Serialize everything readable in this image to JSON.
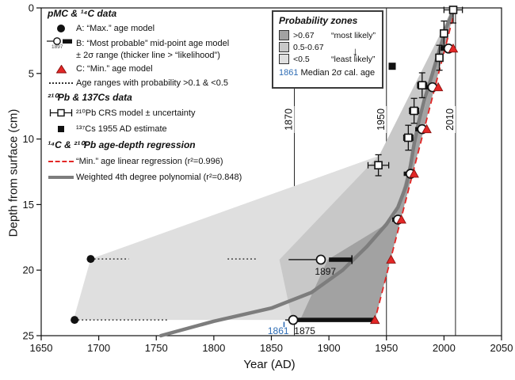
{
  "colors": {
    "zone_dark": "#a2a2a2",
    "zone_mid": "#c8c8c8",
    "zone_light": "#dfdfdf",
    "curve": "#7d7d7d",
    "red": "#e32726",
    "blue": "#2f6db5",
    "ink": "#111111"
  },
  "figure": {
    "x_axis": {
      "title": "Year (AD)",
      "min": 1650,
      "max": 2050,
      "ticks": [
        1650,
        1700,
        1750,
        1800,
        1850,
        1900,
        1950,
        2000,
        2050
      ]
    },
    "y_axis": {
      "title": "Depth from surface (cm)",
      "min": 0,
      "max": 25,
      "ticks": [
        0,
        5,
        10,
        15,
        20,
        25
      ]
    }
  },
  "legend_left": {
    "h1": "pMC & ¹⁴C data",
    "a_label": "A: “Max.” age model",
    "b_label": "B: “Most probable” mid-point age model",
    "b_label2": "± 2σ range (thicker line > “likelihood”)",
    "b_sub": "1897",
    "c_label": "C: “Min.” age model",
    "dotted_label": "Age ranges with probability >0.1 & <0.5",
    "h2": "²¹⁰Pb & 137Cs data",
    "pb_label": "²¹⁰Pb CRS model ± uncertainty",
    "cs_label": "¹³⁷Cs 1955 AD estimate",
    "h3": "¹⁴C & ²¹⁰Pb age-depth regression",
    "reg_label": "“Min.” age linear regression (r²=0.996)",
    "poly_label": "Weighted 4th degree polynomial (r²=0.848)"
  },
  "prob_box": {
    "title": "Probability zones",
    "rows": [
      {
        "value": ">0.67",
        "note": "“most likely”"
      },
      {
        "value": "0.5-0.67",
        "note": ""
      },
      {
        "value": "<0.5",
        "note": "“least likely”"
      }
    ],
    "arrow": "↓",
    "median_value": "1861",
    "median_label": "Median 2σ cal. age"
  },
  "chart_data": {
    "type": "scatter",
    "title": "Age-depth model",
    "xlabel": "Year (AD)",
    "ylabel": "Depth from surface (cm)",
    "x_range": [
      1650,
      2050
    ],
    "y_range_depth_cm": [
      0,
      25
    ],
    "ref_years": [
      {
        "year": 1870,
        "label": "1870",
        "partial": true
      },
      {
        "year": 1950,
        "label": "1950",
        "partial": false
      },
      {
        "year": 2010,
        "label": "2010",
        "partial": false
      }
    ],
    "zones": {
      "light": [
        [
          1678,
          23.8
        ],
        [
          1693,
          19.15
        ],
        [
          1949,
          11.1
        ],
        [
          2006,
          0.2
        ],
        [
          1940,
          23.8
        ]
      ],
      "mid": [
        [
          1868,
          23.8
        ],
        [
          1857,
          19.2
        ],
        [
          1944,
          11.2
        ],
        [
          2007,
          0.2
        ],
        [
          1940,
          23.8
        ]
      ],
      "dark": [
        [
          1875,
          23.8
        ],
        [
          1899,
          19.2
        ],
        [
          1957,
          16.1
        ],
        [
          1968,
          12.6
        ],
        [
          1978,
          9.2
        ],
        [
          1988,
          6.0
        ],
        [
          1998,
          3.0
        ],
        [
          2006,
          0.2
        ],
        [
          2009,
          0.2
        ],
        [
          1940,
          23.8
        ]
      ]
    },
    "polynomial_curve": [
      [
        1754,
        25
      ],
      [
        1800,
        23.9
      ],
      [
        1850,
        22.9
      ],
      [
        1885,
        21.7
      ],
      [
        1912,
        20.0
      ],
      [
        1933,
        18.2
      ],
      [
        1950,
        16.5
      ],
      [
        1960,
        15.2
      ],
      [
        1967,
        13.6
      ],
      [
        1971,
        12.0
      ],
      [
        1974,
        10.4
      ],
      [
        1978,
        8.7
      ],
      [
        1983,
        7.0
      ],
      [
        1989,
        5.3
      ],
      [
        1995,
        3.5
      ],
      [
        2002,
        1.5
      ],
      [
        2008,
        0.2
      ]
    ],
    "regression_line": {
      "from": [
        2010,
        0
      ],
      "to": [
        1940,
        23.8
      ]
    },
    "pb210_crs": [
      {
        "year": 2008,
        "depth": 0.15,
        "xerr": 8,
        "yerr_up": 0.2,
        "yerr_dn": 1.0
      },
      {
        "year": 2000,
        "depth": 1.95,
        "xerr": 3,
        "yerr_up": 0.95,
        "yerr_dn": 0.95
      },
      {
        "year": 1996,
        "depth": 3.8,
        "xerr": 3,
        "yerr_up": 0.95,
        "yerr_dn": 0.95
      },
      {
        "year": 1981,
        "depth": 5.9,
        "xerr": 4,
        "yerr_up": 0.95,
        "yerr_dn": 0.95
      },
      {
        "year": 1974,
        "depth": 7.85,
        "xerr": 4,
        "yerr_up": 0.95,
        "yerr_dn": 0.95
      },
      {
        "year": 1969,
        "depth": 9.9,
        "xerr": 4,
        "yerr_up": 0.95,
        "yerr_dn": 0.95
      },
      {
        "year": 1943,
        "depth": 12.0,
        "xerr": 9,
        "yerr_up": 0.8,
        "yerr_dn": 0.8
      }
    ],
    "cs137": {
      "year": 1955,
      "depth": 4.45
    },
    "c14_b_midpoints": [
      {
        "depth": 3.1,
        "year": 2004,
        "thick": [
          1997,
          2004
        ]
      },
      {
        "depth": 6.05,
        "year": 1990,
        "thick": [
          1984,
          1990
        ]
      },
      {
        "depth": 9.25,
        "year": 1981,
        "thick": [
          1975,
          1981
        ]
      },
      {
        "depth": 12.65,
        "year": 1971,
        "thick": [
          1965,
          1971
        ]
      },
      {
        "depth": 16.15,
        "year": 1960,
        "thick": [
          1955,
          1960
        ]
      },
      {
        "depth": 19.2,
        "year": 1893,
        "thin": [
          1865,
          1893
        ],
        "thick": [
          1900,
          1920
        ],
        "thick_cap": true,
        "label": "1897",
        "label_year": 1897,
        "label_depth": 20.1
      },
      {
        "depth": 23.8,
        "year": 1869,
        "thin": [
          1862,
          1869
        ],
        "thick": [
          1871,
          1939
        ],
        "label": "1875",
        "label_year": 1879,
        "label_depth": 24.65
      }
    ],
    "c14_a_max": [
      {
        "depth": 19.15,
        "year": 1693,
        "dotted": [
          [
            1696,
            1726
          ],
          [
            1812,
            1838
          ]
        ]
      },
      {
        "depth": 23.8,
        "year": 1679,
        "dotted": [
          [
            1682,
            1761
          ]
        ]
      }
    ],
    "c14_c_min": [
      {
        "depth": 3.1,
        "year": 2008
      },
      {
        "depth": 6.05,
        "year": 1995
      },
      {
        "depth": 9.25,
        "year": 1985
      },
      {
        "depth": 12.65,
        "year": 1974
      },
      {
        "depth": 16.15,
        "year": 1963
      },
      {
        "depth": 19.2,
        "year": 1954
      },
      {
        "depth": 23.8,
        "year": 1940
      }
    ],
    "median_marker": {
      "year": 1861,
      "label": "1861",
      "label_year": 1856,
      "label_depth": 24.65,
      "tick_depth_from": 23.95,
      "tick_depth_to": 24.35
    }
  }
}
